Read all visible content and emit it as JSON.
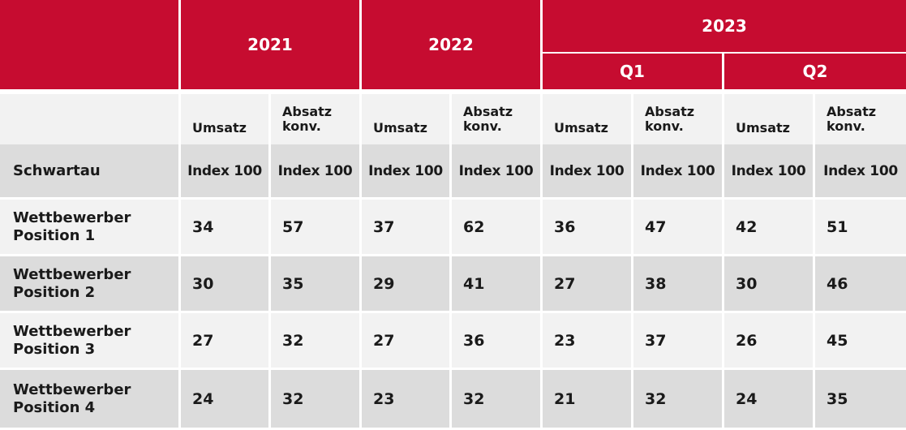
{
  "chart_data": {
    "type": "table",
    "header": {
      "years": [
        "2021",
        "2022",
        "2023"
      ],
      "quarters": [
        "Q1",
        "Q2"
      ]
    },
    "metrics": {
      "umsatz": "Umsatz",
      "absatz_line1": "Absatz",
      "absatz_line2": "konv."
    },
    "rows": [
      {
        "label_line1": "Schwartau",
        "label_line2": "",
        "values": [
          "Index 100",
          "Index 100",
          "Index 100",
          "Index 100",
          "Index 100",
          "Index 100",
          "Index 100",
          "Index 100"
        ]
      },
      {
        "label_line1": "Wettbewerber",
        "label_line2": "Position 1",
        "values": [
          "34",
          "57",
          "37",
          "62",
          "36",
          "47",
          "42",
          "51"
        ]
      },
      {
        "label_line1": "Wettbewerber",
        "label_line2": "Position 2",
        "values": [
          "30",
          "35",
          "29",
          "41",
          "27",
          "38",
          "30",
          "46"
        ]
      },
      {
        "label_line1": "Wettbewerber",
        "label_line2": "Position 3",
        "values": [
          "27",
          "32",
          "27",
          "36",
          "23",
          "37",
          "26",
          "45"
        ]
      },
      {
        "label_line1": "Wettbewerber",
        "label_line2": "Position 4",
        "values": [
          "24",
          "32",
          "23",
          "32",
          "21",
          "32",
          "24",
          "35"
        ]
      }
    ]
  },
  "colors": {
    "header_red": "#c60c30",
    "row_dark": "#dcdcdc",
    "row_light": "#f2f2f2",
    "text": "#1a1a1a"
  }
}
